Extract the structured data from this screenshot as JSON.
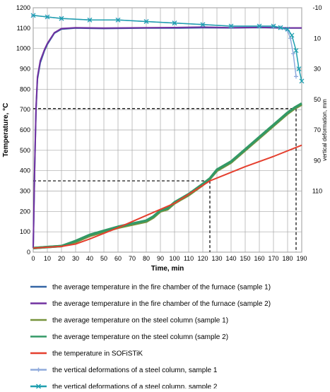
{
  "chart_data": {
    "type": "line",
    "xlabel": "Time, min",
    "ylabel": "Temperature, °C",
    "y2label": "vertical deformation, mm",
    "xlim": [
      0,
      190
    ],
    "ylim": [
      0,
      1200
    ],
    "y2lim": [
      -10,
      150
    ],
    "y2_inverted": true,
    "x_ticks": [
      0,
      10,
      20,
      30,
      40,
      50,
      60,
      70,
      80,
      90,
      100,
      110,
      120,
      130,
      140,
      150,
      160,
      170,
      180,
      190
    ],
    "y_ticks": [
      0,
      100,
      200,
      300,
      400,
      500,
      600,
      700,
      800,
      900,
      1000,
      1100,
      1200
    ],
    "y2_ticks": [
      -10,
      10,
      30,
      50,
      70,
      90,
      110
    ],
    "grid": true,
    "legend_position": "bottom",
    "series": [
      {
        "name": "the average temperature in the fire chamber of the furnace (sample 1)",
        "axis": "left",
        "color": "#3465a4",
        "x": [
          0,
          1,
          2,
          3,
          5,
          8,
          10,
          15,
          20,
          30,
          50,
          80,
          100,
          120,
          140,
          160,
          180,
          190
        ],
        "y": [
          20,
          400,
          700,
          850,
          930,
          990,
          1020,
          1075,
          1095,
          1100,
          1098,
          1100,
          1100,
          1102,
          1101,
          1103,
          1100,
          1100
        ]
      },
      {
        "name": "the average temperature in the fire chamber of the furnace (sample 2)",
        "axis": "left",
        "color": "#7030a0",
        "x": [
          0,
          1,
          2,
          3,
          5,
          8,
          10,
          15,
          20,
          30,
          50,
          80,
          100,
          120,
          140,
          160,
          180,
          190
        ],
        "y": [
          20,
          410,
          710,
          860,
          940,
          995,
          1025,
          1078,
          1098,
          1102,
          1100,
          1102,
          1103,
          1105,
          1102,
          1104,
          1101,
          1101
        ]
      },
      {
        "name": "the average temperature on the steel column (sample 1)",
        "axis": "left",
        "color": "#77933c",
        "x": [
          0,
          10,
          20,
          30,
          40,
          50,
          60,
          70,
          80,
          85,
          90,
          95,
          100,
          110,
          120,
          125,
          130,
          140,
          150,
          160,
          170,
          180,
          185,
          190
        ],
        "y": [
          20,
          25,
          30,
          50,
          80,
          100,
          120,
          135,
          150,
          170,
          200,
          210,
          240,
          280,
          330,
          360,
          400,
          440,
          500,
          560,
          620,
          680,
          705,
          725
        ]
      },
      {
        "name": "the average temperature on the steel column (sample 2)",
        "axis": "left",
        "color": "#339966",
        "x": [
          0,
          10,
          20,
          30,
          40,
          50,
          60,
          70,
          80,
          85,
          90,
          95,
          100,
          110,
          120,
          125,
          130,
          140,
          150,
          160,
          170,
          180,
          185,
          190
        ],
        "y": [
          20,
          25,
          30,
          55,
          85,
          105,
          125,
          140,
          155,
          175,
          205,
          215,
          245,
          285,
          335,
          362,
          405,
          445,
          505,
          565,
          625,
          685,
          710,
          730
        ]
      },
      {
        "name": "the temperature in SOFiSTiK",
        "axis": "left",
        "color": "#e53f2e",
        "x": [
          0,
          20,
          30,
          40,
          60,
          80,
          100,
          125,
          150,
          170,
          190
        ],
        "y": [
          20,
          28,
          40,
          65,
          120,
          180,
          240,
          350,
          420,
          470,
          525
        ]
      },
      {
        "name": "the vertical deformations of a steel column, sample 1",
        "axis": "right",
        "color": "#8faadc",
        "x": [
          0,
          10,
          20,
          40,
          60,
          80,
          100,
          120,
          140,
          160,
          170,
          175,
          180,
          182,
          184,
          186
        ],
        "y": [
          -5,
          -4,
          -3,
          -2,
          -2,
          -1,
          0,
          1,
          2,
          2,
          2,
          3,
          5,
          10,
          20,
          35
        ]
      },
      {
        "name": "the vertical deformations of a steel column, sample 2",
        "axis": "right",
        "color": "#1f9faf",
        "x": [
          0,
          10,
          20,
          40,
          60,
          80,
          100,
          120,
          140,
          160,
          170,
          175,
          180,
          183,
          186,
          188,
          190
        ],
        "y": [
          -5,
          -4,
          -3,
          -2,
          -2,
          -1,
          0,
          1,
          2,
          2,
          2,
          3,
          4,
          8,
          18,
          30,
          38
        ]
      }
    ],
    "reference_lines": [
      {
        "x": 125,
        "y": 350
      },
      {
        "x": 186,
        "y": 705
      }
    ]
  }
}
